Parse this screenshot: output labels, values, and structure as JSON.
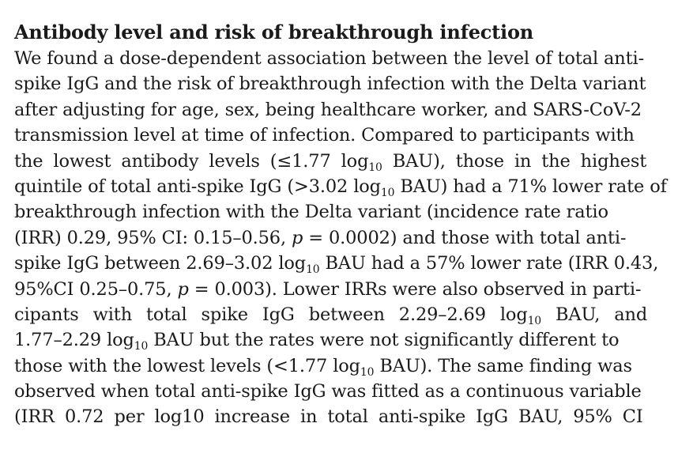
{
  "section": {
    "heading": "Antibody level and risk of breakthrough infection"
  },
  "paragraph": {
    "line1": "We found a dose-dependent association between the level of total anti-",
    "line2": "spike IgG and the risk of breakthrough infection with the Delta variant",
    "line3": "after adjusting for age, sex, being healthcare worker, and SARS-CoV-2",
    "line4": "transmission level at time of infection. Compared to participants with",
    "line5_a": "the lowest antibody levels (≤1.77 log",
    "line5_sub": "10",
    "line5_b": " BAU), those in the highest",
    "line6_a": "quintile of total anti-spike IgG (>3.02 log",
    "line6_sub": "10",
    "line6_b": " BAU) had a 71% lower rate of",
    "line7": "breakthrough infection with the Delta variant (incidence rate ratio",
    "line8_a": "(IRR) 0.29, 95% CI: 0.15–0.56, ",
    "line8_p": "p",
    "line8_b": " = 0.0002) and those with total anti-",
    "line9_a": "spike IgG between 2.69–3.02 log",
    "line9_sub": "10",
    "line9_b": " BAU had a 57% lower rate (IRR 0.43,",
    "line10_a": "95%CI 0.25–0.75, ",
    "line10_p": "p",
    "line10_b": " = 0.003). Lower IRRs were also observed in parti-",
    "line11_a": "cipants with total spike IgG between 2.29–2.69 log",
    "line11_sub": "10",
    "line11_b": " BAU, and",
    "line12_a": "1.77–2.29 log",
    "line12_sub": "10",
    "line12_b": " BAU but the rates were not significantly different to",
    "line13_a": "those with the lowest levels (<1.77 log",
    "line13_sub": "10",
    "line13_b": " BAU). The same finding was",
    "line14": "observed when total anti-spike IgG was fitted as a continuous variable",
    "line15": "(IRR 0.72 per log10 increase in total anti-spike IgG BAU, 95% CI"
  }
}
